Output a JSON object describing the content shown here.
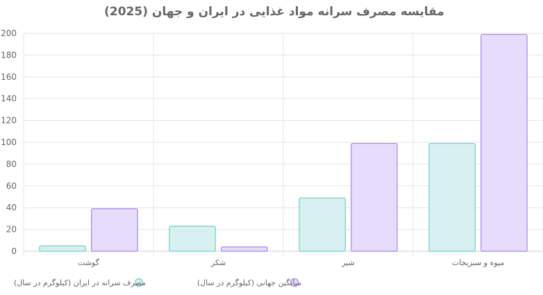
{
  "chart_data": {
    "type": "bar",
    "title": "مقایسه مصرف سرانه مواد غذایی در ایران و جهان (2025)",
    "categories": [
      "گوشت",
      "شکر",
      "شیر",
      "میوه و سبزیجات"
    ],
    "series": [
      {
        "name": "مصرف سرانه در ایران (کیلوگرم در سال)",
        "values": [
          5,
          23,
          49,
          99
        ],
        "fill": "#d9f0f0",
        "stroke": "#6fcfc6"
      },
      {
        "name": "میانگین جهانی (کیلوگرم در سال)",
        "values": [
          39,
          4,
          99,
          199
        ],
        "fill": "#e7ddfb",
        "stroke": "#a783e8"
      }
    ],
    "ylim": [
      0,
      200
    ],
    "yticks": [
      0,
      20,
      40,
      60,
      80,
      100,
      120,
      140,
      160,
      180,
      200
    ],
    "grid": true,
    "legend": "bottom",
    "colors": {
      "text": "#666666",
      "grid": "#e6e6e6",
      "axis": "#cfcfcf"
    }
  }
}
